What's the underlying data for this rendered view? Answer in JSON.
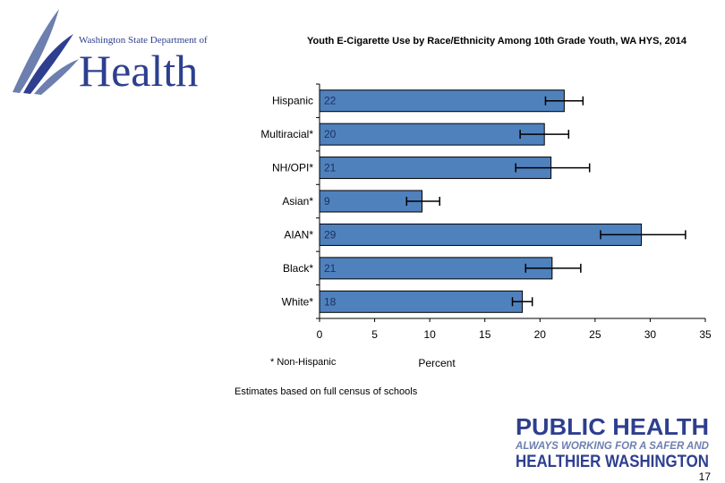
{
  "header": {
    "logo_top": "Washington State Department of",
    "logo_main": "Health"
  },
  "footer": {
    "footnote": "* Non-Hispanic",
    "estimates": "Estimates based on full census of schools",
    "page_number": "17",
    "ph_line1": "PUBLIC HEALTH",
    "ph_line2": "ALWAYS WORKING FOR A SAFER AND",
    "ph_line3": "HEALTHIER WASHINGTON"
  },
  "colors": {
    "bar_fill": "#4f81bd",
    "bar_stroke": "#000000",
    "logo_blue": "#2e3f8f",
    "logo_gray": "#6d7fae"
  },
  "chart_data": {
    "type": "bar",
    "orientation": "horizontal",
    "title": "Youth E-Cigarette Use by Race/Ethnicity Among 10th Grade Youth, WA HYS, 2014",
    "xlabel": "Percent",
    "ylabel": "",
    "xlim": [
      0,
      35
    ],
    "xticks": [
      0,
      5,
      10,
      15,
      20,
      25,
      30,
      35
    ],
    "categories": [
      "Hispanic",
      "Multiracial*",
      "NH/OPI*",
      "Asian*",
      "AIAN*",
      "Black*",
      "White*"
    ],
    "values": [
      22.2,
      20.4,
      21.0,
      9.3,
      29.2,
      21.1,
      18.4
    ],
    "data_labels": [
      "22",
      "20",
      "21",
      "9",
      "29",
      "21",
      "18"
    ],
    "error_low": [
      20.5,
      18.2,
      17.8,
      7.9,
      25.5,
      18.7,
      17.5
    ],
    "error_high": [
      23.9,
      22.6,
      24.5,
      10.9,
      33.2,
      23.7,
      19.3
    ],
    "grid": false
  }
}
